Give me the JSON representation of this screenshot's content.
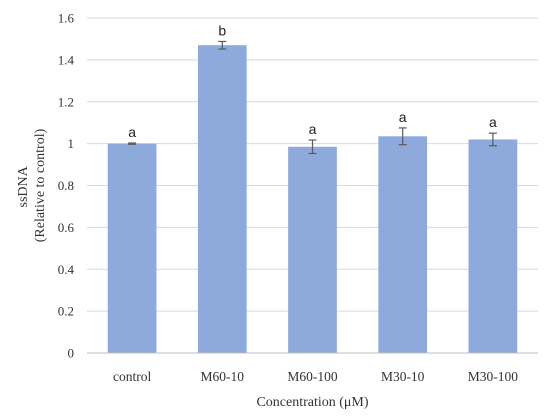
{
  "chart_data": {
    "type": "bar",
    "categories": [
      "control",
      "M60-10",
      "M60-100",
      "M30-10",
      "M30-100"
    ],
    "values": [
      1.0,
      1.47,
      0.985,
      1.035,
      1.02
    ],
    "errors": [
      0.003,
      0.018,
      0.032,
      0.04,
      0.03
    ],
    "significance_labels": [
      "a",
      "b",
      "a",
      "a",
      "a"
    ],
    "xlabel": "Concentration (μM)",
    "ylabel_lines": [
      "ssDNA",
      "(Relative to control)"
    ],
    "ylim": [
      0,
      1.6
    ],
    "yticks": [
      0,
      0.2,
      0.4,
      0.6,
      0.8,
      1,
      1.2,
      1.4,
      1.6
    ],
    "ytick_labels": [
      "0",
      "0.2",
      "0.4",
      "0.6",
      "0.8",
      "1",
      "1.2",
      "1.4",
      "1.6"
    ],
    "grid": true,
    "legend": "none",
    "colors": {
      "bar": "#8eaadc",
      "grid": "#d9d9d9",
      "error": "#595959",
      "axis": "#bfbfbf"
    }
  }
}
